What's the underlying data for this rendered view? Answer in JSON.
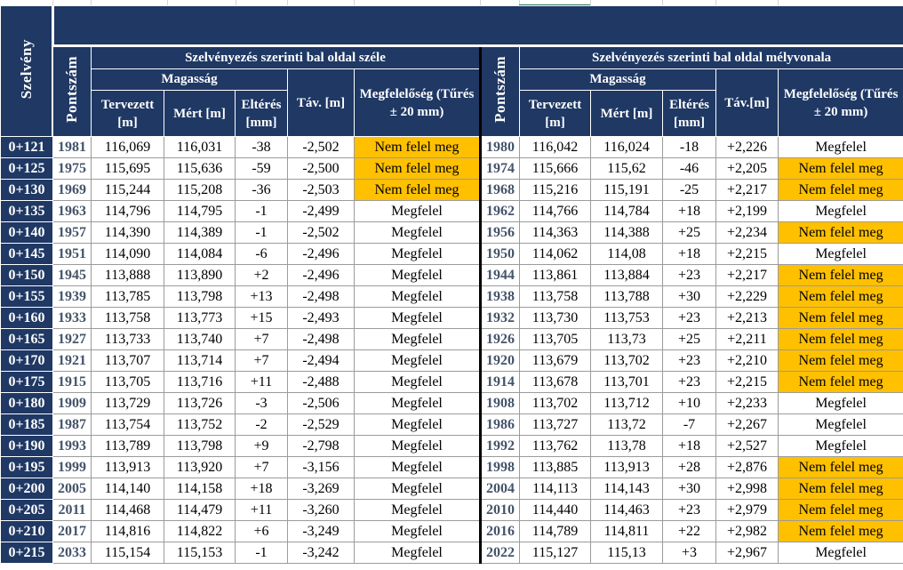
{
  "sheet": {
    "header": {
      "szelveny": "Szelvény",
      "pontszam": "Pontszám",
      "left_group": "Szelvényezés szerinti bal oldal széle",
      "right_group": "Szelvényezés szerinti bal oldal mélyvonala",
      "magassag": "Magasság",
      "tervezett": "Tervezett [m]",
      "mert": "Mért [m]",
      "elteres": "Eltérés [mm]",
      "tav_left": "Táv. [m]",
      "tav_right": "Táv.[m]",
      "megfeleloseg": "Megfelelőség (Tűrés ± 20 mm)"
    },
    "rows": [
      {
        "sz": "0+121",
        "p1": "1981",
        "t1": "116,069",
        "m1": "116,031",
        "e1": "-38",
        "d1": "-2,502",
        "s1": "Nem felel meg",
        "p2": "1980",
        "t2": "116,042",
        "m2": "116,024",
        "e2": "-18",
        "d2": "+2,226",
        "s2": "Megfelel"
      },
      {
        "sz": "0+125",
        "p1": "1975",
        "t1": "115,695",
        "m1": "115,636",
        "e1": "-59",
        "d1": "-2,500",
        "s1": "Nem felel meg",
        "p2": "1974",
        "t2": "115,666",
        "m2": "115,62",
        "e2": "-46",
        "d2": "+2,205",
        "s2": "Nem felel meg"
      },
      {
        "sz": "0+130",
        "p1": "1969",
        "t1": "115,244",
        "m1": "115,208",
        "e1": "-36",
        "d1": "-2,503",
        "s1": "Nem felel meg",
        "p2": "1968",
        "t2": "115,216",
        "m2": "115,191",
        "e2": "-25",
        "d2": "+2,217",
        "s2": "Nem felel meg"
      },
      {
        "sz": "0+135",
        "p1": "1963",
        "t1": "114,796",
        "m1": "114,795",
        "e1": "-1",
        "d1": "-2,499",
        "s1": "Megfelel",
        "p2": "1962",
        "t2": "114,766",
        "m2": "114,784",
        "e2": "+18",
        "d2": "+2,199",
        "s2": "Megfelel"
      },
      {
        "sz": "0+140",
        "p1": "1957",
        "t1": "114,390",
        "m1": "114,389",
        "e1": "-1",
        "d1": "-2,502",
        "s1": "Megfelel",
        "p2": "1956",
        "t2": "114,363",
        "m2": "114,388",
        "e2": "+25",
        "d2": "+2,234",
        "s2": "Nem felel meg"
      },
      {
        "sz": "0+145",
        "p1": "1951",
        "t1": "114,090",
        "m1": "114,084",
        "e1": "-6",
        "d1": "-2,496",
        "s1": "Megfelel",
        "p2": "1950",
        "t2": "114,062",
        "m2": "114,08",
        "e2": "+18",
        "d2": "+2,215",
        "s2": "Megfelel"
      },
      {
        "sz": "0+150",
        "p1": "1945",
        "t1": "113,888",
        "m1": "113,890",
        "e1": "+2",
        "d1": "-2,496",
        "s1": "Megfelel",
        "p2": "1944",
        "t2": "113,861",
        "m2": "113,884",
        "e2": "+23",
        "d2": "+2,217",
        "s2": "Nem felel meg"
      },
      {
        "sz": "0+155",
        "p1": "1939",
        "t1": "113,785",
        "m1": "113,798",
        "e1": "+13",
        "d1": "-2,498",
        "s1": "Megfelel",
        "p2": "1938",
        "t2": "113,758",
        "m2": "113,788",
        "e2": "+30",
        "d2": "+2,229",
        "s2": "Nem felel meg"
      },
      {
        "sz": "0+160",
        "p1": "1933",
        "t1": "113,758",
        "m1": "113,773",
        "e1": "+15",
        "d1": "-2,493",
        "s1": "Megfelel",
        "p2": "1932",
        "t2": "113,730",
        "m2": "113,753",
        "e2": "+23",
        "d2": "+2,213",
        "s2": "Nem felel meg"
      },
      {
        "sz": "0+165",
        "p1": "1927",
        "t1": "113,733",
        "m1": "113,740",
        "e1": "+7",
        "d1": "-2,498",
        "s1": "Megfelel",
        "p2": "1926",
        "t2": "113,705",
        "m2": "113,73",
        "e2": "+25",
        "d2": "+2,211",
        "s2": "Nem felel meg"
      },
      {
        "sz": "0+170",
        "p1": "1921",
        "t1": "113,707",
        "m1": "113,714",
        "e1": "+7",
        "d1": "-2,494",
        "s1": "Megfelel",
        "p2": "1920",
        "t2": "113,679",
        "m2": "113,702",
        "e2": "+23",
        "d2": "+2,210",
        "s2": "Nem felel meg"
      },
      {
        "sz": "0+175",
        "p1": "1915",
        "t1": "113,705",
        "m1": "113,716",
        "e1": "+11",
        "d1": "-2,488",
        "s1": "Megfelel",
        "p2": "1914",
        "t2": "113,678",
        "m2": "113,701",
        "e2": "+23",
        "d2": "+2,215",
        "s2": "Nem felel meg"
      },
      {
        "sz": "0+180",
        "p1": "1909",
        "t1": "113,729",
        "m1": "113,726",
        "e1": "-3",
        "d1": "-2,506",
        "s1": "Megfelel",
        "p2": "1908",
        "t2": "113,702",
        "m2": "113,712",
        "e2": "+10",
        "d2": "+2,233",
        "s2": "Megfelel"
      },
      {
        "sz": "0+185",
        "p1": "1987",
        "t1": "113,754",
        "m1": "113,752",
        "e1": "-2",
        "d1": "-2,529",
        "s1": "Megfelel",
        "p2": "1986",
        "t2": "113,727",
        "m2": "113,72",
        "e2": "-7",
        "d2": "+2,267",
        "s2": "Megfelel"
      },
      {
        "sz": "0+190",
        "p1": "1993",
        "t1": "113,789",
        "m1": "113,798",
        "e1": "+9",
        "d1": "-2,798",
        "s1": "Megfelel",
        "p2": "1992",
        "t2": "113,762",
        "m2": "113,78",
        "e2": "+18",
        "d2": "+2,527",
        "s2": "Megfelel"
      },
      {
        "sz": "0+195",
        "p1": "1999",
        "t1": "113,913",
        "m1": "113,920",
        "e1": "+7",
        "d1": "-3,156",
        "s1": "Megfelel",
        "p2": "1998",
        "t2": "113,885",
        "m2": "113,913",
        "e2": "+28",
        "d2": "+2,876",
        "s2": "Nem felel meg"
      },
      {
        "sz": "0+200",
        "p1": "2005",
        "t1": "114,140",
        "m1": "114,158",
        "e1": "+18",
        "d1": "-3,269",
        "s1": "Megfelel",
        "p2": "2004",
        "t2": "114,113",
        "m2": "114,143",
        "e2": "+30",
        "d2": "+2,998",
        "s2": "Nem felel meg"
      },
      {
        "sz": "0+205",
        "p1": "2011",
        "t1": "114,468",
        "m1": "114,479",
        "e1": "+11",
        "d1": "-3,260",
        "s1": "Megfelel",
        "p2": "2010",
        "t2": "114,440",
        "m2": "114,463",
        "e2": "+23",
        "d2": "+2,979",
        "s2": "Nem felel meg"
      },
      {
        "sz": "0+210",
        "p1": "2017",
        "t1": "114,816",
        "m1": "114,822",
        "e1": "+6",
        "d1": "-3,249",
        "s1": "Megfelel",
        "p2": "2016",
        "t2": "114,789",
        "m2": "114,811",
        "e2": "+22",
        "d2": "+2,982",
        "s2": "Nem felel meg"
      },
      {
        "sz": "0+215",
        "p1": "2033",
        "t1": "115,154",
        "m1": "115,153",
        "e1": "-1",
        "d1": "-3,242",
        "s1": "Megfelel",
        "p2": "2022",
        "t2": "115,127",
        "m2": "115,13",
        "e2": "+3",
        "d2": "+2,967",
        "s2": "Megfelel"
      }
    ]
  },
  "colors": {
    "header_bg": "#1f3864",
    "pontszam_text": "#44546a",
    "fail_highlight": "#ffc000"
  }
}
